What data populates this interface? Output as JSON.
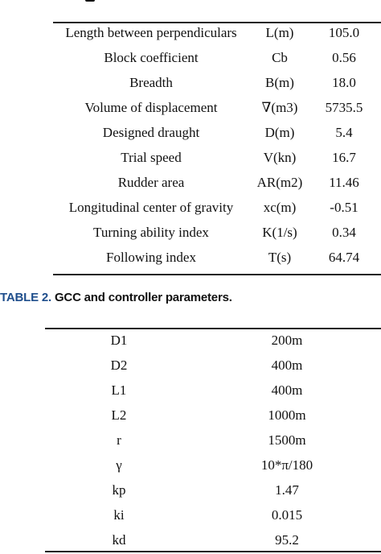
{
  "table1": {
    "rows": [
      {
        "param": "Length between perpendiculars",
        "symbol": "L(m)",
        "value": "105.0"
      },
      {
        "param": "Block coefficient",
        "symbol": "Cb",
        "value": "0.56"
      },
      {
        "param": "Breadth",
        "symbol": "B(m)",
        "value": "18.0"
      },
      {
        "param": "Volume of displacement",
        "symbol": "∇(m3)",
        "value": "5735.5"
      },
      {
        "param": "Designed draught",
        "symbol": "D(m)",
        "value": "5.4"
      },
      {
        "param": "Trial speed",
        "symbol": "V(kn)",
        "value": "16.7"
      },
      {
        "param": "Rudder area",
        "symbol": "AR(m2)",
        "value": "11.46"
      },
      {
        "param": "Longitudinal center of gravity",
        "symbol": "xc(m)",
        "value": "-0.51"
      },
      {
        "param": "Turning ability index",
        "symbol": "K(1/s)",
        "value": "0.34"
      },
      {
        "param": "Following index",
        "symbol": "T(s)",
        "value": "64.74"
      }
    ]
  },
  "table2": {
    "caption_label": "TABLE 2.",
    "caption_title": "GCC and controller parameters.",
    "rows": [
      {
        "param": "D1",
        "value": "200m"
      },
      {
        "param": "D2",
        "value": "400m"
      },
      {
        "param": "L1",
        "value": "400m"
      },
      {
        "param": "L2",
        "value": "1000m"
      },
      {
        "param": "r",
        "value": "1500m"
      },
      {
        "param": "γ",
        "value": "10*π/180"
      },
      {
        "param": "kp",
        "value": "1.47"
      },
      {
        "param": "ki",
        "value": "0.015"
      },
      {
        "param": "kd",
        "value": "95.2"
      }
    ]
  }
}
